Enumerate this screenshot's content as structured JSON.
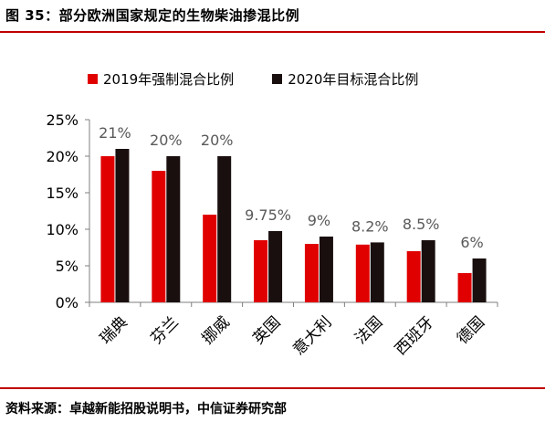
{
  "figure": {
    "title": "图 35：部分欧洲国家规定的生物柴油掺混比例",
    "source": "资料来源：卓越新能招股说明书，中信证券研究部"
  },
  "chart_data": {
    "type": "bar",
    "title": "",
    "xlabel": "",
    "ylabel": "",
    "ylim": [
      0,
      25
    ],
    "yticks": [
      "0%",
      "5%",
      "10%",
      "15%",
      "20%",
      "25%"
    ],
    "categories": [
      "瑞典",
      "芬兰",
      "挪威",
      "英国",
      "意大利",
      "法国",
      "西班牙",
      "德国"
    ],
    "series": [
      {
        "name": "2019年强制混合比例",
        "color": "#e00000",
        "values": [
          20,
          18,
          12,
          8.5,
          8,
          7.9,
          7,
          4
        ]
      },
      {
        "name": "2020年目标混合比例",
        "color": "#1a0f0f",
        "values": [
          21,
          20,
          20,
          9.75,
          9,
          8.2,
          8.5,
          6
        ]
      }
    ],
    "data_labels": [
      "21%",
      "20%",
      "20%",
      "9.75%",
      "9%",
      "8.2%",
      "8.5%",
      "6%"
    ],
    "legend_position": "top",
    "grid": false
  }
}
